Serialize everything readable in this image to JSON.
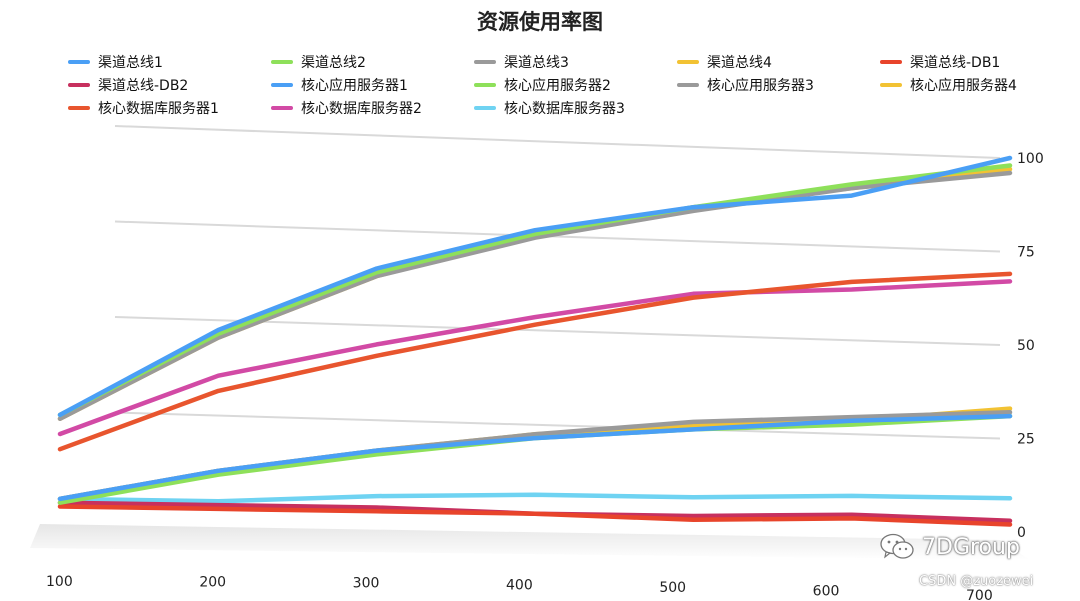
{
  "chart_data": {
    "type": "line",
    "title": "资源使用率图",
    "x": [
      100,
      200,
      300,
      400,
      500,
      600,
      700
    ],
    "x_ticks": [
      "100",
      "200",
      "300",
      "400",
      "500",
      "600",
      "700"
    ],
    "y_ticks": [
      "0",
      "25",
      "50",
      "75",
      "100"
    ],
    "ylim": [
      0,
      100
    ],
    "xlim": [
      100,
      700
    ],
    "grid": true,
    "legend_position": "top",
    "series": [
      {
        "name": "渠道总线1",
        "color": "#4a9ff5",
        "values": [
          5,
          13,
          19,
          23,
          26,
          29,
          31
        ]
      },
      {
        "name": "渠道总线2",
        "color": "#8ee05a",
        "values": [
          4,
          12,
          18,
          23,
          26,
          28,
          31
        ]
      },
      {
        "name": "渠道总线3",
        "color": "#9a9a9a",
        "values": [
          5,
          13,
          19,
          24,
          28,
          30,
          32
        ]
      },
      {
        "name": "渠道总线4",
        "color": "#f2c233",
        "values": [
          5,
          13,
          19,
          24,
          27,
          29,
          33
        ]
      },
      {
        "name": "渠道总线-DB1",
        "color": "#e8442b",
        "values": [
          3,
          3,
          3,
          3,
          2,
          3,
          2
        ]
      },
      {
        "name": "渠道总线-DB2",
        "color": "#c7305e",
        "values": [
          4,
          4,
          4,
          3,
          3,
          4,
          3
        ]
      },
      {
        "name": "核心应用服务器1",
        "color": "#4a9ff5",
        "values": [
          27,
          50,
          67,
          78,
          85,
          89,
          100
        ]
      },
      {
        "name": "核心应用服务器2",
        "color": "#8ee05a",
        "values": [
          27,
          49,
          66,
          77,
          85,
          92,
          98
        ]
      },
      {
        "name": "核心应用服务器3",
        "color": "#9a9a9a",
        "values": [
          26,
          48,
          65,
          76,
          84,
          91,
          96
        ]
      },
      {
        "name": "核心应用服务器4",
        "color": "#f2c233",
        "values": [
          26,
          48,
          65,
          77,
          85,
          91,
          97
        ]
      },
      {
        "name": "核心数据库服务器1",
        "color": "#e8552e",
        "values": [
          18,
          34,
          44,
          53,
          61,
          66,
          69
        ]
      },
      {
        "name": "核心数据库服务器2",
        "color": "#d24aa5",
        "values": [
          22,
          38,
          47,
          55,
          62,
          64,
          67
        ]
      },
      {
        "name": "核心数据库服务器3",
        "color": "#6fd3f2",
        "values": [
          5,
          5,
          7,
          8,
          8,
          9,
          9
        ]
      }
    ]
  },
  "watermark": {
    "text": "7DGroup",
    "icon": "wechat-icon",
    "credit": "CSDN @zuozewei"
  }
}
